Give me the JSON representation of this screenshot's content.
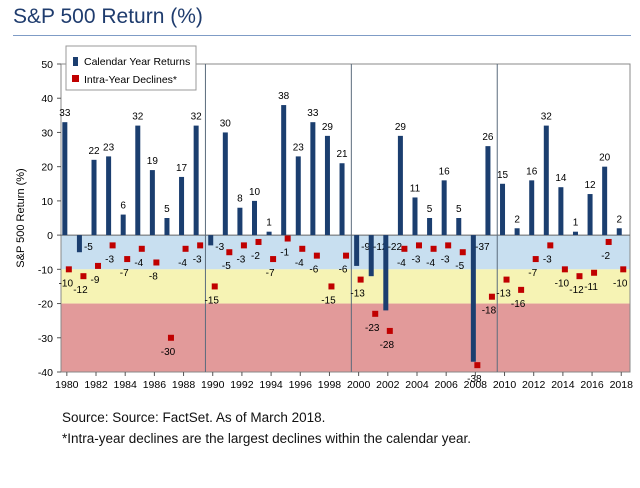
{
  "title": "S&P 500 Return (%)",
  "footnotes": {
    "source": "Source: Source: FactSet. As of March 2018.",
    "note": "*Intra-year declines are the largest declines within the calendar year."
  },
  "colors": {
    "bar": "#1b3e6f",
    "marker": "#c00000",
    "band_blue": "#c8dff0",
    "band_yellow": "#f6f3b4",
    "band_red": "#e29a9a",
    "divider": "#5a6b7c"
  },
  "chart_data": {
    "type": "bar",
    "title": "",
    "xlabel": "",
    "ylabel": "S&P 500 Return (%)",
    "ylim": [
      -40,
      50
    ],
    "yticks": [
      50,
      40,
      30,
      20,
      10,
      0,
      -10,
      -20,
      -30,
      -40
    ],
    "xticks": [
      1980,
      1982,
      1984,
      1986,
      1988,
      1990,
      1992,
      1994,
      1996,
      1998,
      2000,
      2002,
      2004,
      2006,
      2008,
      2010,
      2012,
      2014,
      2016,
      2018
    ],
    "background_bands": [
      {
        "from": 0,
        "to": -10,
        "color": "blue"
      },
      {
        "from": -10,
        "to": -20,
        "color": "yellow"
      },
      {
        "from": -20,
        "to": -40,
        "color": "red"
      }
    ],
    "decade_dividers": [
      1989.5,
      1999.5,
      2009.5
    ],
    "legend_position": "top-left",
    "categories": [
      1980,
      1981,
      1982,
      1983,
      1984,
      1985,
      1986,
      1987,
      1988,
      1989,
      1990,
      1991,
      1992,
      1993,
      1994,
      1995,
      1996,
      1997,
      1998,
      1999,
      2000,
      2001,
      2002,
      2003,
      2004,
      2005,
      2006,
      2007,
      2008,
      2009,
      2010,
      2011,
      2012,
      2013,
      2014,
      2015,
      2016,
      2017,
      2018
    ],
    "series": [
      {
        "name": "Calendar Year Returns",
        "kind": "bar",
        "values": [
          33,
          -5,
          22,
          23,
          6,
          32,
          19,
          5,
          17,
          32,
          -3,
          30,
          8,
          10,
          1,
          38,
          23,
          33,
          29,
          21,
          -9,
          -12,
          -22,
          29,
          11,
          5,
          16,
          5,
          -37,
          26,
          15,
          2,
          16,
          32,
          14,
          1,
          12,
          20,
          2
        ],
        "labels": [
          "33",
          "-5",
          "22",
          "23",
          "6",
          "32",
          "19",
          "5",
          "17",
          "32",
          "-3",
          "30",
          "8",
          "10",
          "1",
          "38",
          "23",
          "33",
          "29",
          "21",
          "-9",
          "-12",
          "-22",
          "29",
          "11",
          "5",
          "16",
          "5",
          "-37",
          "26",
          "15",
          "2",
          "16",
          "32",
          "14",
          "1",
          "12",
          "20",
          "2"
        ]
      },
      {
        "name": "Intra-Year Declines*",
        "kind": "marker",
        "values": [
          -10,
          -12,
          -9,
          -3,
          -7,
          -4,
          -8,
          -30,
          -4,
          -3,
          -15,
          -5,
          -3,
          -2,
          -7,
          -1,
          -4,
          -6,
          -15,
          -6,
          -13,
          -23,
          -28,
          -4,
          -3,
          -4,
          -3,
          -5,
          -38,
          -18,
          -13,
          -16,
          -7,
          -3,
          -10,
          -12,
          -11,
          -2,
          -10
        ],
        "labels": [
          "-10",
          "-12",
          "-9",
          "-3",
          "-7",
          "-4",
          "-8",
          "-30",
          "-4",
          "-3",
          "-15",
          "-5",
          "-3",
          "-2",
          "-7",
          "-1",
          "-4",
          "-6",
          "-15",
          "-6",
          "-13",
          "-23",
          "-28",
          "-4",
          "-3",
          "-4",
          "-3",
          "-5",
          "-38",
          "-18",
          "-13",
          "-16",
          "-7",
          "-3",
          "-10",
          "-12",
          "-11",
          "-2",
          "-10"
        ]
      }
    ]
  }
}
